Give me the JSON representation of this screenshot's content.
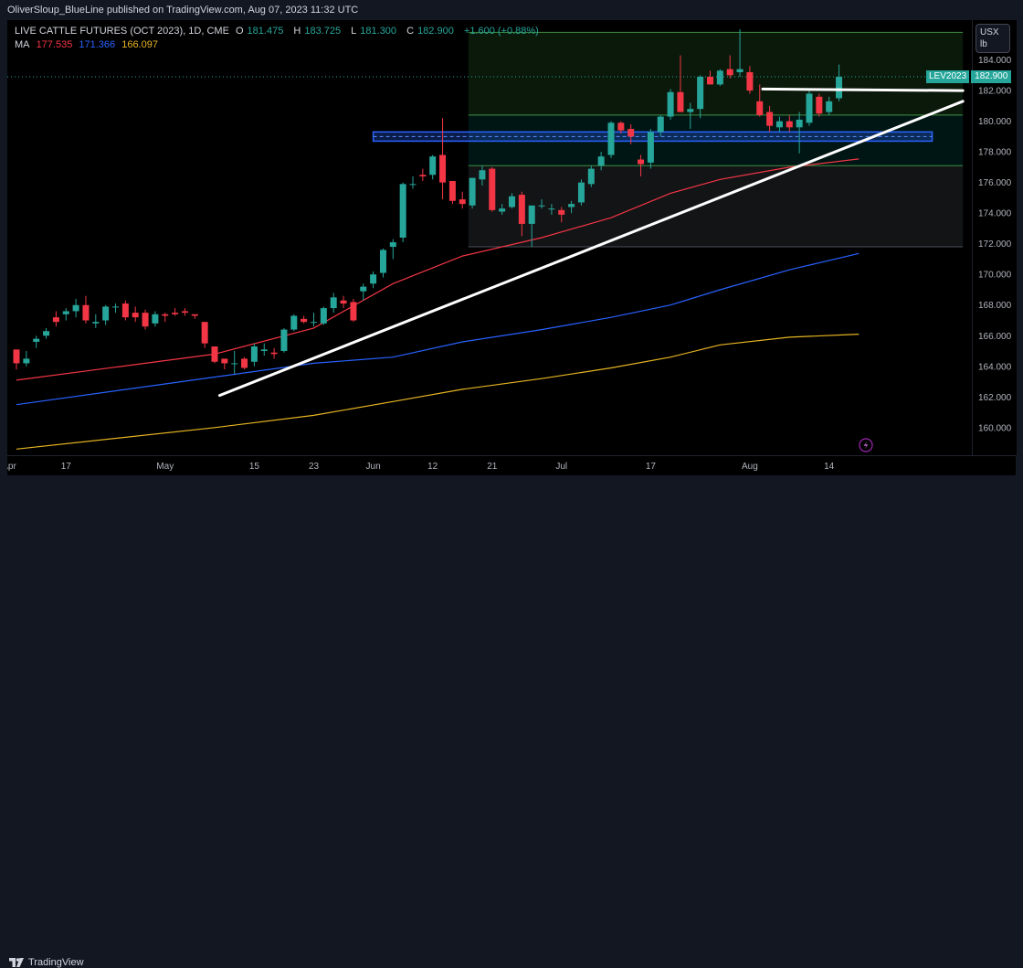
{
  "header": {
    "publisher_line": "OliverSloup_BlueLine published on TradingView.com, Aug 07, 2023 11:32 UTC"
  },
  "legend": {
    "symbol_line": "LIVE CATTLE FUTURES (OCT 2023), 1D, CME",
    "open_key": "O",
    "open": "181.475",
    "high_key": "H",
    "high": "183.725",
    "low_key": "L",
    "low": "181.300",
    "close_key": "C",
    "close": "182.900",
    "change": "+1.600 (+0.88%)",
    "ma_label": "MA",
    "ma_values": [
      "177.535",
      "171.366",
      "166.097"
    ]
  },
  "price_axis": {
    "unit_line1": "USX",
    "unit_line2": "lb"
  },
  "last_price": {
    "symbol": "LEV2023",
    "value": "182.900"
  },
  "footer": {
    "brand": "TradingView"
  },
  "colors": {
    "up": "#26a69a",
    "down": "#f23645",
    "ma1": "#f23645",
    "ma2": "#2962ff",
    "ma3": "#e6b422"
  },
  "chart_data": {
    "type": "candlestick",
    "title": "LIVE CATTLE FUTURES (OCT 2023), 1D, CME",
    "y_ticks": [
      160,
      162,
      164,
      166,
      168,
      170,
      172,
      174,
      176,
      178,
      180,
      182,
      184
    ],
    "ylim": [
      158.2,
      186.6
    ],
    "x_ticks": [
      {
        "label": "Apr",
        "idx": -1.8
      },
      {
        "label": "17",
        "idx": 5
      },
      {
        "label": "May",
        "idx": 15
      },
      {
        "label": "15",
        "idx": 24
      },
      {
        "label": "23",
        "idx": 30
      },
      {
        "label": "Jun",
        "idx": 36
      },
      {
        "label": "12",
        "idx": 42
      },
      {
        "label": "21",
        "idx": 48
      },
      {
        "label": "Jul",
        "idx": 55
      },
      {
        "label": "17",
        "idx": 64
      },
      {
        "label": "Aug",
        "idx": 74
      },
      {
        "label": "14",
        "idx": 82
      }
    ],
    "candles": [
      [
        165.1,
        165.1,
        163.8,
        164.2
      ],
      [
        164.2,
        165.0,
        164.0,
        164.5
      ],
      [
        165.6,
        166.0,
        165.2,
        165.8
      ],
      [
        166.0,
        166.5,
        165.8,
        166.3
      ],
      [
        167.2,
        167.6,
        166.6,
        166.9
      ],
      [
        167.4,
        167.8,
        167.0,
        167.6
      ],
      [
        167.6,
        168.4,
        167.2,
        168.0
      ],
      [
        168.0,
        168.6,
        166.8,
        167.0
      ],
      [
        166.8,
        167.4,
        166.5,
        166.9
      ],
      [
        167.0,
        168.0,
        166.7,
        167.9
      ],
      [
        167.9,
        168.1,
        167.5,
        167.9
      ],
      [
        168.1,
        168.3,
        167.0,
        167.2
      ],
      [
        167.5,
        167.9,
        166.9,
        167.2
      ],
      [
        167.5,
        167.7,
        166.4,
        166.6
      ],
      [
        166.8,
        167.6,
        166.6,
        167.4
      ],
      [
        167.4,
        167.5,
        166.9,
        167.3
      ],
      [
        167.5,
        167.8,
        167.3,
        167.4
      ],
      [
        167.6,
        167.8,
        167.3,
        167.5
      ],
      [
        167.4,
        167.4,
        167.1,
        167.3
      ],
      [
        166.9,
        166.9,
        165.2,
        165.5
      ],
      [
        165.3,
        165.3,
        164.2,
        164.3
      ],
      [
        164.5,
        164.5,
        163.8,
        164.2
      ],
      [
        164.2,
        165.0,
        163.5,
        164.2
      ],
      [
        164.5,
        164.6,
        163.8,
        163.9
      ],
      [
        164.3,
        165.5,
        164.0,
        165.3
      ],
      [
        165.0,
        165.5,
        164.7,
        165.1
      ],
      [
        164.9,
        165.2,
        164.5,
        164.8
      ],
      [
        165.0,
        166.5,
        164.9,
        166.4
      ],
      [
        166.4,
        167.4,
        166.3,
        167.3
      ],
      [
        167.1,
        167.3,
        166.8,
        166.9
      ],
      [
        166.9,
        167.5,
        166.6,
        166.9
      ],
      [
        166.8,
        167.9,
        166.7,
        167.8
      ],
      [
        167.8,
        168.8,
        167.5,
        168.5
      ],
      [
        168.3,
        168.6,
        167.8,
        168.1
      ],
      [
        168.2,
        168.4,
        166.9,
        167.0
      ],
      [
        168.9,
        169.4,
        168.3,
        169.2
      ],
      [
        169.4,
        170.2,
        169.1,
        170.0
      ],
      [
        170.1,
        171.7,
        169.8,
        171.6
      ],
      [
        171.8,
        172.3,
        171.0,
        172.1
      ],
      [
        172.4,
        176.0,
        172.1,
        175.9
      ],
      [
        175.9,
        176.4,
        175.6,
        175.9
      ],
      [
        176.5,
        176.9,
        176.1,
        176.4
      ],
      [
        176.5,
        177.8,
        176.2,
        177.7
      ],
      [
        177.8,
        180.2,
        174.9,
        176.0
      ],
      [
        176.1,
        176.1,
        174.6,
        174.8
      ],
      [
        174.9,
        175.4,
        174.3,
        174.6
      ],
      [
        174.5,
        176.3,
        174.3,
        176.3
      ],
      [
        176.2,
        177.1,
        175.8,
        176.8
      ],
      [
        176.9,
        177.0,
        174.1,
        174.2
      ],
      [
        174.1,
        174.6,
        173.9,
        174.3
      ],
      [
        174.4,
        175.3,
        174.3,
        175.1
      ],
      [
        175.2,
        175.4,
        172.5,
        173.3
      ],
      [
        173.3,
        174.5,
        171.8,
        174.5
      ],
      [
        174.5,
        174.9,
        174.3,
        174.5
      ],
      [
        174.3,
        174.6,
        173.9,
        174.3
      ],
      [
        174.2,
        174.4,
        173.4,
        173.9
      ],
      [
        174.4,
        174.8,
        174.0,
        174.6
      ],
      [
        174.7,
        176.2,
        174.5,
        176.0
      ],
      [
        175.9,
        177.1,
        175.7,
        176.9
      ],
      [
        177.1,
        178.0,
        176.8,
        177.7
      ],
      [
        177.8,
        180.0,
        177.6,
        179.9
      ],
      [
        179.9,
        180.0,
        179.2,
        179.4
      ],
      [
        179.5,
        179.8,
        178.5,
        179.0
      ],
      [
        177.5,
        177.8,
        176.4,
        177.2
      ],
      [
        177.3,
        179.5,
        176.9,
        179.3
      ],
      [
        179.3,
        180.4,
        179.0,
        180.3
      ],
      [
        180.3,
        182.1,
        180.1,
        181.9
      ],
      [
        181.9,
        184.3,
        180.6,
        180.6
      ],
      [
        180.6,
        181.2,
        179.5,
        180.8
      ],
      [
        180.8,
        183.0,
        180.2,
        182.9
      ],
      [
        182.9,
        183.3,
        182.4,
        182.4
      ],
      [
        182.4,
        183.4,
        182.3,
        183.3
      ],
      [
        183.4,
        184.3,
        182.8,
        183.0
      ],
      [
        183.2,
        186.0,
        182.9,
        183.4
      ],
      [
        183.2,
        183.6,
        181.8,
        182.0
      ],
      [
        181.3,
        182.4,
        180.3,
        180.4
      ],
      [
        180.6,
        181.0,
        179.3,
        179.7
      ],
      [
        179.6,
        180.3,
        179.3,
        180.0
      ],
      [
        180.0,
        180.4,
        179.3,
        179.6
      ],
      [
        179.6,
        180.6,
        177.9,
        180.1
      ],
      [
        179.9,
        182.0,
        179.7,
        181.8
      ],
      [
        181.6,
        181.8,
        180.3,
        180.5
      ],
      [
        180.6,
        181.6,
        180.4,
        181.3
      ],
      [
        181.5,
        183.7,
        181.3,
        182.9
      ]
    ],
    "moving_averages": [
      {
        "name": "177.535",
        "points": [
          [
            0,
            163.1
          ],
          [
            20,
            164.8
          ],
          [
            30,
            166.5
          ],
          [
            38,
            169.4
          ],
          [
            45,
            171.2
          ],
          [
            53,
            172.4
          ],
          [
            60,
            173.7
          ],
          [
            66,
            175.3
          ],
          [
            71,
            176.2
          ],
          [
            78,
            177.0
          ],
          [
            85,
            177.54
          ]
        ]
      },
      {
        "name": "171.366",
        "points": [
          [
            0,
            161.5
          ],
          [
            20,
            163.3
          ],
          [
            30,
            164.2
          ],
          [
            38,
            164.6
          ],
          [
            45,
            165.6
          ],
          [
            53,
            166.4
          ],
          [
            60,
            167.2
          ],
          [
            66,
            168.0
          ],
          [
            71,
            169.0
          ],
          [
            78,
            170.3
          ],
          [
            85,
            171.37
          ]
        ]
      },
      {
        "name": "166.097",
        "points": [
          [
            0,
            158.6
          ],
          [
            20,
            160.0
          ],
          [
            30,
            160.8
          ],
          [
            38,
            161.7
          ],
          [
            45,
            162.5
          ],
          [
            53,
            163.2
          ],
          [
            60,
            163.9
          ],
          [
            66,
            164.6
          ],
          [
            71,
            165.4
          ],
          [
            78,
            165.9
          ],
          [
            85,
            166.1
          ]
        ]
      }
    ],
    "drawings": {
      "trendline": [
        [
          20.5,
          162.1
        ],
        [
          95.5,
          181.3
        ]
      ],
      "resistance_line": [
        [
          75.3,
          182.1
        ],
        [
          95.5,
          182.0
        ]
      ],
      "support_band": [
        [
          36.0,
          179.3
        ],
        [
          92.4,
          178.7
        ]
      ],
      "range_box": {
        "x": [
          45.6,
          95.5
        ],
        "levels": [
          185.8,
          180.4,
          177.1,
          171.8
        ]
      }
    }
  }
}
